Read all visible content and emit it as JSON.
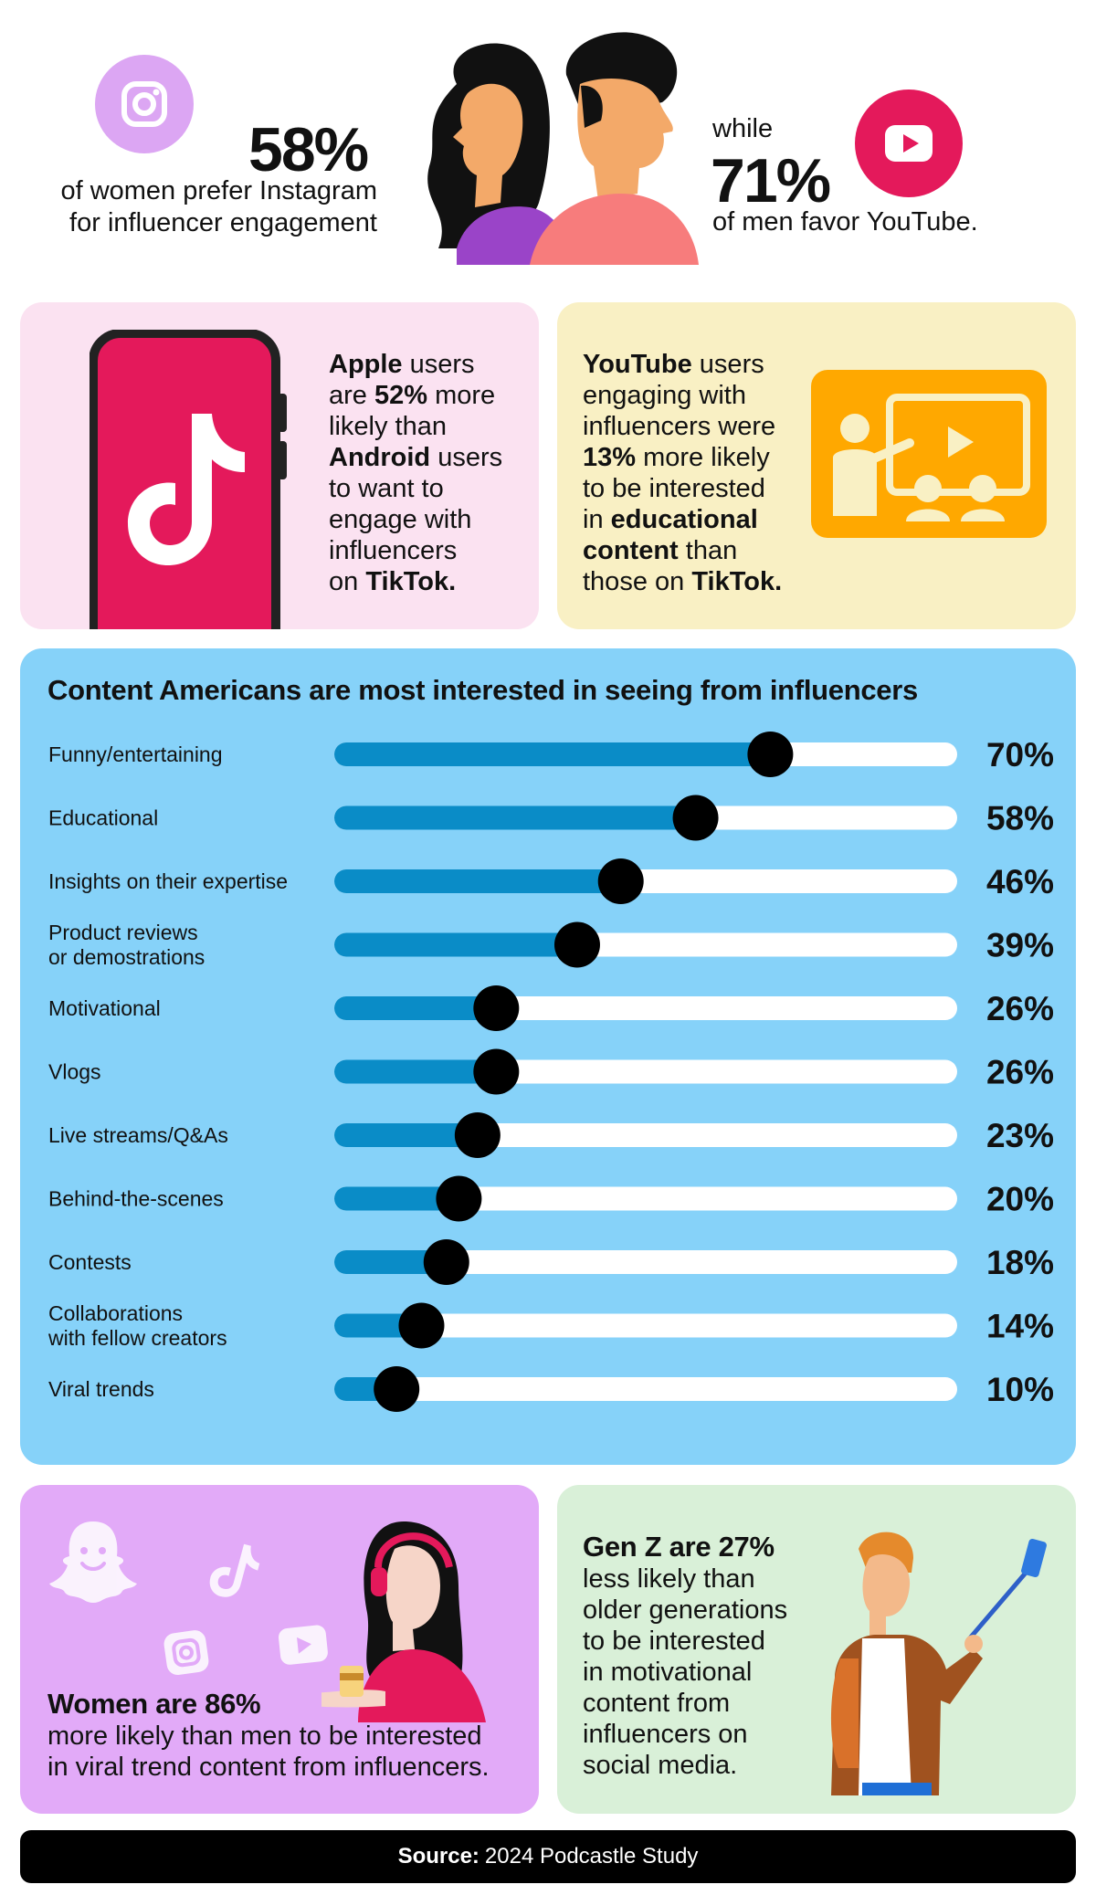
{
  "hero": {
    "left_pct": "58%",
    "left_line1": "of women prefer Instagram",
    "left_line2": "for influencer engagement",
    "right_while": "while",
    "right_pct": "71%",
    "right_line": "of men favor YouTube."
  },
  "apple_panel": {
    "b1": "Apple",
    "t1": " users",
    "t2": "are ",
    "b2": "52%",
    "t3": " more",
    "t4": "likely than",
    "b3": "Android",
    "t5": " users",
    "t6": "to want to",
    "t7": "engage with",
    "t8": "influencers",
    "t9": "on ",
    "b4": "TikTok."
  },
  "youtube_panel": {
    "b1": "YouTube",
    "t1": " users",
    "t2": "engaging with",
    "t3": "influencers were",
    "b2": "13%",
    "t4": " more likely",
    "t5": "to be interested",
    "t6": "in ",
    "b3": "educational",
    "b4": "content",
    "t7": " than",
    "t8": "those on ",
    "b5": "TikTok."
  },
  "chart_data": {
    "type": "bar",
    "orientation": "horizontal",
    "title": "Content Americans are most interested in seeing from influencers",
    "xlim": [
      0,
      100
    ],
    "categories": [
      [
        "Funny/entertaining"
      ],
      [
        "Educational"
      ],
      [
        "Insights on their expertise"
      ],
      [
        "Product reviews",
        "or demostrations"
      ],
      [
        "Motivational"
      ],
      [
        "Vlogs"
      ],
      [
        "Live streams/Q&As"
      ],
      [
        "Behind-the-scenes"
      ],
      [
        "Contests"
      ],
      [
        "Collaborations",
        "with fellow creators"
      ],
      [
        "Viral trends"
      ]
    ],
    "values": [
      70,
      58,
      46,
      39,
      26,
      26,
      23,
      20,
      18,
      14,
      10
    ],
    "value_labels": [
      "70%",
      "58%",
      "46%",
      "39%",
      "26%",
      "26%",
      "23%",
      "20%",
      "18%",
      "14%",
      "10%"
    ],
    "colors": {
      "fill": "#0a8cc7",
      "track": "#ffffff",
      "knob": "#000000"
    }
  },
  "women_panel": {
    "headline": "Women are 86%",
    "line1": "more likely than men to be interested",
    "line2": "in viral trend content from influencers."
  },
  "genz_panel": {
    "headline": "Gen Z are 27%",
    "lines": [
      "less likely than",
      "older generations",
      "to be interested",
      "in motivational",
      "content from",
      "influencers on",
      "social media."
    ]
  },
  "footer": {
    "label": "Source:",
    "text": "2024 Podcastle Study"
  },
  "icons": [
    "instagram-icon",
    "youtube-icon",
    "woman-profile-icon",
    "man-profile-icon",
    "phone-icon",
    "tiktok-icon",
    "presentation-icon",
    "snapchat-icon",
    "woman-headphones-icon",
    "selfie-man-icon"
  ],
  "colors": {
    "pink": "#e4195b",
    "purple": "#dca6f3",
    "blue": "#86d2f9",
    "amber": "#ffa800"
  }
}
